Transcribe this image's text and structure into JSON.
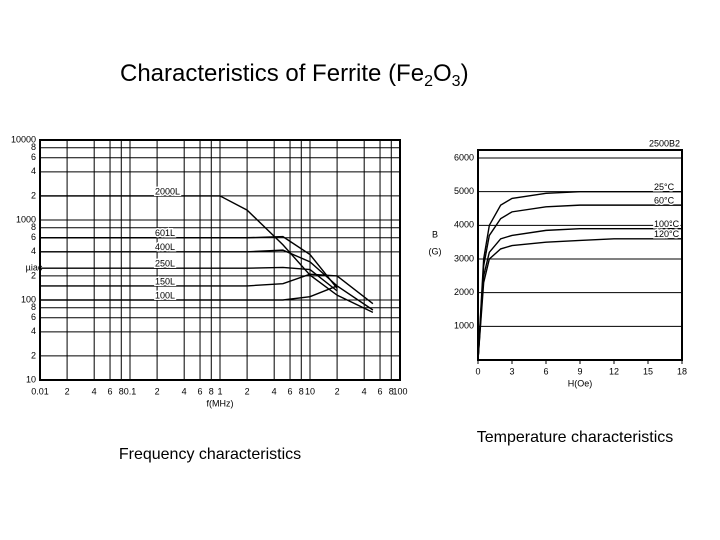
{
  "slide_title": [
    "Characteristics of Ferrite (Fe",
    "2",
    "O",
    "3",
    ")"
  ],
  "chart_data": [
    {
      "type": "line",
      "caption": "Frequency characteristics",
      "xlabel": "f(MHz)",
      "ylabel": "µiac",
      "xlog": true,
      "ylog": true,
      "grid": "both",
      "series_labels": "start",
      "color": "#000000",
      "xlim": [
        0.01,
        100
      ],
      "ylim": [
        10,
        10000
      ],
      "xticks": [
        0.01,
        {
          "value": 0.02,
          "label": "2"
        },
        {
          "value": 0.04,
          "label": "4"
        },
        {
          "value": 0.06,
          "label": "6"
        },
        {
          "value": 0.08,
          "label": "8"
        },
        0.1,
        {
          "value": 0.2,
          "label": "2"
        },
        {
          "value": 0.4,
          "label": "4"
        },
        {
          "value": 0.6,
          "label": "6"
        },
        {
          "value": 0.8,
          "label": "8"
        },
        1,
        {
          "value": 2,
          "label": "2"
        },
        {
          "value": 4,
          "label": "4"
        },
        {
          "value": 6,
          "label": "6"
        },
        {
          "value": 8,
          "label": "8"
        },
        10,
        {
          "value": 20,
          "label": "2"
        },
        {
          "value": 40,
          "label": "4"
        },
        {
          "value": 60,
          "label": "6"
        },
        {
          "value": 80,
          "label": "8"
        },
        100
      ],
      "yticks": [
        10,
        {
          "value": 20,
          "label": "2"
        },
        {
          "value": 40,
          "label": "4"
        },
        {
          "value": 60,
          "label": "6"
        },
        {
          "value": 80,
          "label": "8"
        },
        100,
        {
          "value": 200,
          "label": "2"
        },
        {
          "value": 400,
          "label": "4"
        },
        {
          "value": 600,
          "label": "6"
        },
        {
          "value": 800,
          "label": "8"
        },
        1000,
        {
          "value": 2000,
          "label": "2"
        },
        {
          "value": 4000,
          "label": "4"
        },
        {
          "value": 6000,
          "label": "6"
        },
        {
          "value": 8000,
          "label": "8"
        },
        10000
      ],
      "x": [
        0.01,
        0.1,
        0.5,
        1,
        2,
        5,
        10,
        20,
        50
      ],
      "series": [
        {
          "name": "2000L",
          "values": [
            2000,
            2000,
            2000,
            2000,
            1330,
            490,
            205,
            115,
            70
          ]
        },
        {
          "name": "601L",
          "values": [
            600,
            600,
            600,
            600,
            600,
            620,
            370,
            140,
            null
          ]
        },
        {
          "name": "400L",
          "values": [
            400,
            400,
            400,
            400,
            400,
            420,
            300,
            150,
            null
          ]
        },
        {
          "name": "250L",
          "values": [
            250,
            250,
            250,
            250,
            250,
            255,
            240,
            130,
            null
          ]
        },
        {
          "name": "150L",
          "values": [
            150,
            150,
            150,
            150,
            150,
            160,
            210,
            200,
            90
          ]
        },
        {
          "name": "100L",
          "values": [
            100,
            100,
            100,
            100,
            100,
            100,
            110,
            150,
            75
          ]
        }
      ]
    },
    {
      "type": "line",
      "title": "2500B2",
      "caption": "Temperature characteristics",
      "xlabel": "H(Oe)",
      "ylabel": [
        "B",
        "(G)"
      ],
      "xlog": false,
      "ylog": false,
      "grid": "y",
      "series_labels": "end",
      "color": "#000000",
      "xlim": [
        0,
        18
      ],
      "ylim": [
        0,
        6000
      ],
      "xticks": [
        0,
        3,
        6,
        9,
        12,
        15,
        18
      ],
      "yticks": [
        1000,
        2000,
        3000,
        4000,
        5000,
        6000
      ],
      "x": [
        0,
        0.5,
        1,
        2,
        3,
        6,
        9,
        12,
        15,
        18
      ],
      "series": [
        {
          "name": "25°C",
          "values": [
            0,
            3000,
            4000,
            4600,
            4800,
            4950,
            5000,
            5000,
            5000,
            5000
          ]
        },
        {
          "name": "60°C",
          "values": [
            0,
            2800,
            3700,
            4200,
            4400,
            4550,
            4600,
            4600,
            4600,
            4600
          ]
        },
        {
          "name": "100°C",
          "values": [
            0,
            2500,
            3200,
            3600,
            3700,
            3850,
            3900,
            3900,
            3900,
            3900
          ]
        },
        {
          "name": "120°C",
          "values": [
            0,
            2300,
            3000,
            3300,
            3400,
            3500,
            3550,
            3600,
            3600,
            3600
          ]
        }
      ]
    }
  ]
}
